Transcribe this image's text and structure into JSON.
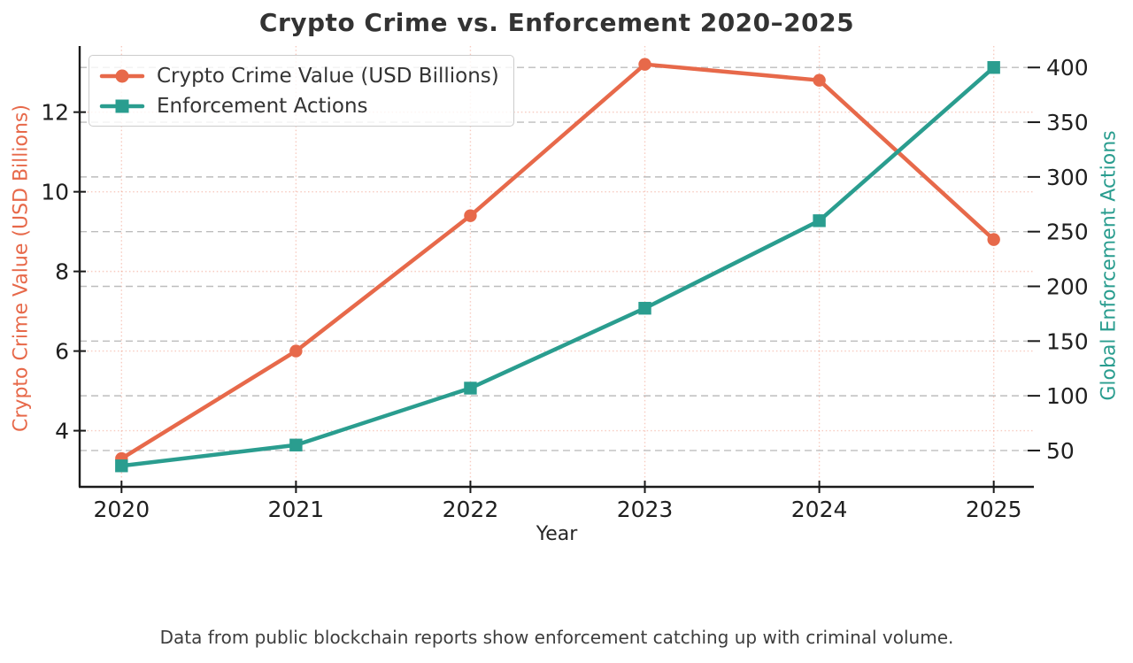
{
  "chart_data": {
    "type": "line",
    "title": "Crypto Crime vs. Enforcement 2020–2025",
    "xlabel": "Year",
    "caption": "Data from public blockchain reports show enforcement catching up with criminal volume.",
    "x": [
      2020,
      2021,
      2022,
      2023,
      2024,
      2025
    ],
    "x_tick_labels": [
      "2020",
      "2021",
      "2022",
      "2023",
      "2024",
      "2025"
    ],
    "series": [
      {
        "name": "Crypto Crime Value (USD Billions)",
        "axis": "left",
        "marker": "circle",
        "color": "#E7694A",
        "values": [
          3.3,
          6.0,
          9.4,
          13.2,
          12.8,
          8.8
        ]
      },
      {
        "name": "Enforcement Actions",
        "axis": "right",
        "marker": "square",
        "color": "#2A9D8F",
        "values": [
          36,
          55,
          107,
          180,
          260,
          400
        ]
      }
    ],
    "left_axis": {
      "label": "Crypto Crime Value (USD Billions)",
      "color": "#E7694A",
      "ticks": [
        4,
        6,
        8,
        10,
        12
      ],
      "range": [
        2.59,
        13.66
      ]
    },
    "right_axis": {
      "label": "Global Enforcement Actions",
      "color": "#2A9D8F",
      "ticks": [
        50,
        100,
        150,
        200,
        250,
        300,
        350,
        400
      ],
      "range": [
        16.8,
        419.6
      ]
    },
    "x_axis": {
      "range": [
        2019.76,
        2025.23
      ]
    },
    "grid": {
      "on": true,
      "x_and_left_color": "#E7694A",
      "x_and_left_opacity": 0.35,
      "right_color": "#BDBDBD"
    },
    "legend_position": "upper-left",
    "tick_label_color": "#1f1f1f",
    "spine_color": "#1a1a1a",
    "background": "#FFFFFF"
  }
}
